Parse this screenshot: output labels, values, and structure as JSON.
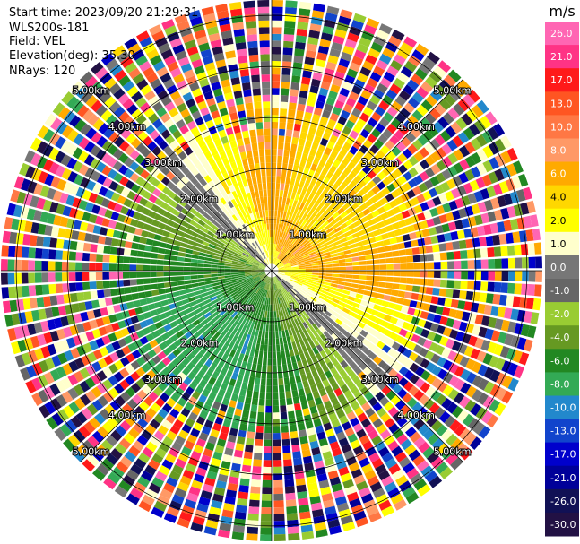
{
  "header": {
    "start_time": "Start time: 2023/09/20 21:29:31",
    "instrument": "WLS200s-181",
    "field": "Field: VEL",
    "elevation": "Elevation(deg): 35.30",
    "nrays": "NRays: 120"
  },
  "chart_data": {
    "type": "heatmap",
    "projection": "polar-ppi",
    "field": "VEL",
    "unit": "m/s",
    "n_rays": 120,
    "elevation_deg": 35.3,
    "range_rings_km": [
      1.0,
      2.0,
      3.0,
      4.0,
      5.0
    ],
    "ring_labels": [
      "1.00km",
      "2.00km",
      "3.00km",
      "4.00km",
      "5.00km"
    ],
    "max_range_km": 5.3,
    "spokes_deg": [
      0,
      45,
      90,
      135,
      180,
      225,
      270,
      315
    ],
    "colorbar": {
      "label": "m/s",
      "ticks": [
        "26.0",
        "21.0",
        "17.0",
        "13.0",
        "10.0",
        "8.0",
        "6.0",
        "4.0",
        "2.0",
        "1.0",
        "0.0",
        "-1.0",
        "-2.0",
        "-4.0",
        "-6.0",
        "-8.0",
        "-10.0",
        "-13.0",
        "-17.0",
        "-21.0",
        "-26.0",
        "-30.0"
      ],
      "colors": [
        "#ff66b3",
        "#ff3385",
        "#ff1a1a",
        "#ff5522",
        "#ff7744",
        "#ff9966",
        "#ffaa00",
        "#ffd700",
        "#ffff00",
        "#ffffcc",
        "#777777",
        "#666666",
        "#99cc33",
        "#669922",
        "#228822",
        "#33aa55",
        "#2288cc",
        "#1144cc",
        "#0000cc",
        "#000099",
        "#111155",
        "#221144"
      ]
    },
    "pattern_summary": {
      "near_north_east_sector": "positive 2-8 m/s (yellow/orange)",
      "near_south_west_sector": "negative -2 to -8 m/s (green/teal)",
      "beyond_approx_3km": "noise (random colors)"
    }
  }
}
